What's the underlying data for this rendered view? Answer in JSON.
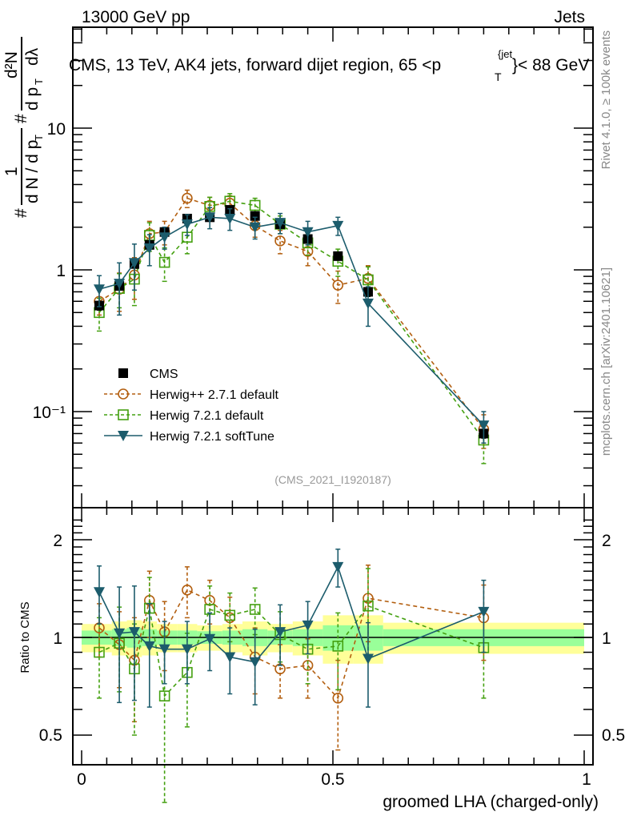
{
  "header": {
    "left": "13000 GeV pp",
    "right": "Jets"
  },
  "side_labels": {
    "rivet": "Rivet 4.1.0, ≥ 100k events",
    "mcplots": "mcplots.cern.ch [arXiv:2401.10621]"
  },
  "chart_data": [
    {
      "type": "line",
      "title": "CMS, 13 TeV, AK4 jets, forward dijet region, 65 <p_T^{jet}< 88 GeV",
      "title_parts": {
        "main": "CMS, 13 TeV, AK4 jets, forward dijet region, 65 <p",
        "sup": "{jet",
        "sub": "T",
        "tail": "}< 88 GeV"
      },
      "ylabel": "1/dN/dpT  d²N/dpT dλ",
      "xlabel": "",
      "yscale": "log",
      "ylim": [
        0.025,
        60
      ],
      "xlim": [
        -0.018,
        1.018
      ],
      "ytick_labels": [
        "10",
        "1",
        "10⁻¹"
      ],
      "ytick_values": [
        10,
        1,
        0.1
      ],
      "watermark": "(CMS_2021_I1920187)",
      "legend_position": "lower-left",
      "x": [
        0.035,
        0.075,
        0.105,
        0.135,
        0.165,
        0.21,
        0.255,
        0.295,
        0.345,
        0.395,
        0.45,
        0.51,
        0.57,
        0.8
      ],
      "series": [
        {
          "name": "CMS",
          "style": "marker-only",
          "marker": "square-filled",
          "color": "#000000",
          "values": [
            0.56,
            0.77,
            1.1,
            1.5,
            1.85,
            2.3,
            2.35,
            2.65,
            2.4,
            2.1,
            1.65,
            1.25,
            0.7,
            0.07
          ],
          "err": [
            0.04,
            0.05,
            0.07,
            0.08,
            0.09,
            0.1,
            0.1,
            0.11,
            0.1,
            0.1,
            0.08,
            0.07,
            0.05,
            0.005
          ]
        },
        {
          "name": "Herwig++ 2.7.1 default",
          "style": "dashed",
          "marker": "circle-open",
          "color": "#b35f10",
          "values": [
            0.6,
            0.73,
            0.92,
            1.8,
            1.85,
            3.2,
            2.85,
            2.95,
            2.05,
            1.6,
            1.35,
            0.78,
            0.87,
            0.075
          ],
          "err": [
            0.12,
            0.22,
            0.3,
            0.4,
            0.35,
            0.45,
            0.4,
            0.38,
            0.35,
            0.3,
            0.28,
            0.2,
            0.2,
            0.02
          ]
        },
        {
          "name": "Herwig 7.2.1 default",
          "style": "dashed",
          "marker": "square-open",
          "color": "#44a010",
          "values": [
            0.5,
            0.74,
            0.86,
            1.75,
            1.13,
            1.7,
            2.8,
            3.05,
            2.85,
            2.1,
            1.55,
            1.15,
            0.85,
            0.063
          ],
          "err": [
            0.13,
            0.2,
            0.3,
            0.4,
            0.3,
            0.4,
            0.45,
            0.4,
            0.35,
            0.3,
            0.28,
            0.25,
            0.2,
            0.02
          ]
        },
        {
          "name": "Herwig 7.2.1 softTune",
          "style": "solid",
          "marker": "triangle-down-filled",
          "color": "#1c5c6c",
          "values": [
            0.73,
            0.8,
            1.12,
            1.42,
            1.7,
            2.1,
            2.35,
            2.3,
            2.0,
            2.15,
            1.85,
            2.05,
            0.58,
            0.08
          ],
          "err": [
            0.18,
            0.32,
            0.4,
            0.35,
            0.3,
            0.35,
            0.4,
            0.4,
            0.35,
            0.35,
            0.35,
            0.3,
            0.18,
            0.02
          ]
        }
      ]
    },
    {
      "type": "line",
      "title": "",
      "ylabel": "Ratio to CMS",
      "xlabel": "groomed LHA (charged-only)",
      "yscale": "log",
      "ylim": [
        0.42,
        2.35
      ],
      "xlim": [
        -0.018,
        1.018
      ],
      "xtick_labels": [
        "0",
        "0.5",
        "1"
      ],
      "xtick_values": [
        0,
        0.5,
        1
      ],
      "ytick_labels": [
        "2",
        "1",
        "0.5"
      ],
      "ytick_values": [
        2,
        1,
        0.5
      ],
      "band_edges": [
        0.0,
        0.06,
        0.09,
        0.12,
        0.15,
        0.19,
        0.23,
        0.28,
        0.32,
        0.37,
        0.42,
        0.48,
        0.54,
        0.6,
        1.0
      ],
      "band_green": [
        0.05,
        0.06,
        0.07,
        0.06,
        0.05,
        0.05,
        0.045,
        0.05,
        0.06,
        0.05,
        0.06,
        0.09,
        0.09,
        0.06
      ],
      "band_yellow": [
        0.1,
        0.12,
        0.13,
        0.12,
        0.1,
        0.1,
        0.09,
        0.1,
        0.12,
        0.1,
        0.12,
        0.17,
        0.17,
        0.11
      ],
      "x": [
        0.035,
        0.075,
        0.105,
        0.135,
        0.165,
        0.21,
        0.255,
        0.295,
        0.345,
        0.395,
        0.45,
        0.51,
        0.57,
        0.8
      ],
      "series": [
        {
          "name": "Herwig++ 2.7.1 default",
          "style": "dashed",
          "marker": "circle-open",
          "color": "#b35f10",
          "values": [
            1.07,
            0.95,
            0.85,
            1.3,
            1.04,
            1.4,
            1.3,
            1.15,
            0.87,
            0.8,
            0.82,
            0.65,
            1.32,
            1.15
          ],
          "err": [
            0.2,
            0.25,
            0.3,
            0.3,
            0.25,
            0.25,
            0.2,
            0.18,
            0.2,
            0.15,
            0.17,
            0.2,
            0.35,
            0.3
          ]
        },
        {
          "name": "Herwig 7.2.1 default",
          "style": "dashed",
          "marker": "square-open",
          "color": "#44a010",
          "values": [
            0.9,
            0.96,
            0.8,
            1.23,
            0.66,
            0.78,
            1.22,
            1.17,
            1.22,
            1.02,
            0.92,
            0.94,
            1.25,
            0.93
          ],
          "err": [
            0.25,
            0.28,
            0.3,
            0.3,
            0.35,
            0.25,
            0.22,
            0.2,
            0.2,
            0.18,
            0.2,
            0.25,
            0.38,
            0.28
          ]
        },
        {
          "name": "Herwig 7.2.1 softTune",
          "style": "solid",
          "marker": "triangle-down-filled",
          "color": "#1c5c6c",
          "values": [
            1.38,
            1.03,
            1.04,
            0.94,
            0.92,
            0.92,
            0.99,
            0.87,
            0.84,
            1.04,
            1.09,
            1.65,
            0.86,
            1.2
          ],
          "err": [
            0.28,
            0.4,
            0.4,
            0.33,
            0.2,
            0.2,
            0.2,
            0.2,
            0.22,
            0.22,
            0.2,
            0.22,
            0.25,
            0.3
          ]
        }
      ]
    }
  ]
}
